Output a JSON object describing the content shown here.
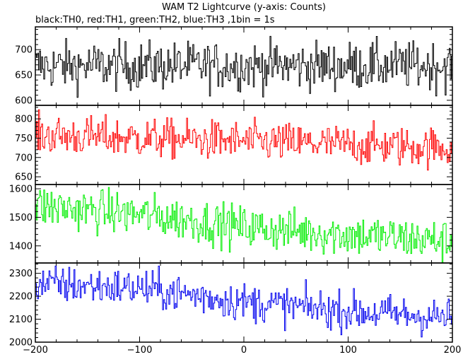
{
  "chart_data": {
    "type": "line",
    "title": "WAM T2 Lightcurve (y-axis: Counts)",
    "subtitle": "black:TH0, red:TH1, green:TH2, blue:TH3 ,1bin = 1s",
    "xlim": [
      -200,
      200
    ],
    "x_ticks": [
      -200,
      -100,
      0,
      100,
      200
    ],
    "x_tick_labels": [
      "−200",
      "−100",
      "0",
      "100",
      "200"
    ],
    "series": [
      {
        "name": "TH0",
        "color": "#000000",
        "ylim": [
          590,
          745
        ],
        "y_ticks": [
          600,
          650,
          700
        ],
        "trend_x": [
          -200,
          200
        ],
        "trend_y": [
          668,
          668
        ],
        "noise": 24
      },
      {
        "name": "TH1",
        "color": "#ff0000",
        "ylim": [
          630,
          835
        ],
        "y_ticks": [
          650,
          700,
          750,
          800
        ],
        "trend_x": [
          -200,
          -100,
          0,
          100,
          200
        ],
        "trend_y": [
          758,
          750,
          742,
          733,
          725
        ],
        "noise": 26
      },
      {
        "name": "TH2",
        "color": "#00ee00",
        "ylim": [
          1340,
          1615
        ],
        "y_ticks": [
          1400,
          1500,
          1600
        ],
        "trend_x": [
          -200,
          -100,
          -50,
          0,
          100,
          200
        ],
        "trend_y": [
          1540,
          1510,
          1490,
          1465,
          1440,
          1415
        ],
        "noise": 38
      },
      {
        "name": "TH3",
        "color": "#0000ee",
        "ylim": [
          2000,
          2345
        ],
        "y_ticks": [
          2000,
          2100,
          2200,
          2300
        ],
        "trend_x": [
          -200,
          -100,
          0,
          100,
          200
        ],
        "trend_y": [
          2255,
          2235,
          2175,
          2135,
          2105
        ],
        "noise": 42
      }
    ]
  }
}
